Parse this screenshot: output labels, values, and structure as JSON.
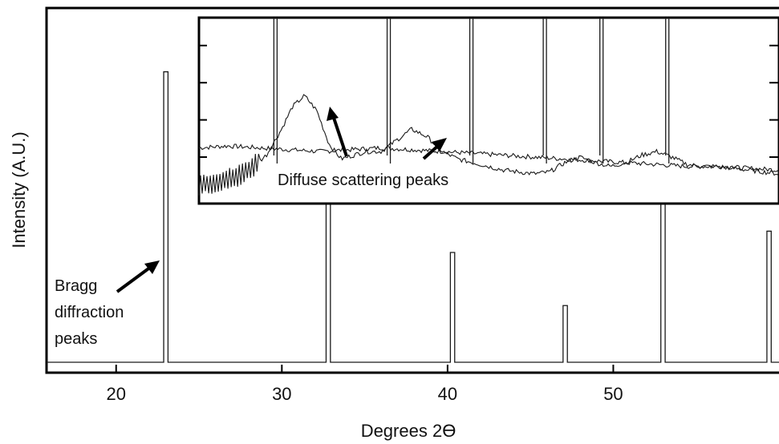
{
  "chart_data": {
    "type": "line",
    "title": "",
    "xlabel": "Degrees 2ϴ",
    "ylabel": "Intensity (A.U.)",
    "xlim": [
      15.8,
      60
    ],
    "ylim": [
      0,
      1.0
    ],
    "xticks": [
      20,
      30,
      40,
      50
    ],
    "grid": false,
    "legend": "none",
    "line_color": "#1a1a1a",
    "main_series": {
      "peaks": [
        {
          "x": 23.0,
          "y": 0.82
        },
        {
          "x": 32.8,
          "y": 0.62
        },
        {
          "x": 40.3,
          "y": 0.31
        },
        {
          "x": 47.1,
          "y": 0.16
        },
        {
          "x": 53.0,
          "y": 0.62
        },
        {
          "x": 59.4,
          "y": 0.37
        }
      ],
      "baseline": 0.0
    },
    "inset": {
      "xlim": [
        22.1,
        60
      ],
      "bragg_line_x": [
        27.1,
        34.5,
        39.9,
        44.7,
        48.4,
        52.7
      ],
      "series": [
        {
          "x": [
            22.1,
            24,
            26,
            28,
            30,
            32,
            34,
            36,
            38,
            40,
            42,
            44,
            46,
            48,
            50,
            52,
            54,
            56,
            58,
            60
          ],
          "y": [
            0.3,
            0.31,
            0.3,
            0.29,
            0.28,
            0.29,
            0.3,
            0.29,
            0.28,
            0.27,
            0.26,
            0.25,
            0.24,
            0.23,
            0.22,
            0.21,
            0.2,
            0.2,
            0.19,
            0.18
          ]
        },
        {
          "x": [
            22.1,
            23.5,
            24.5,
            25.5,
            26.5,
            27.5,
            28.2,
            29,
            29.8,
            30.6,
            31.4,
            32.2,
            33,
            34,
            35,
            36,
            37,
            38,
            39,
            40,
            41,
            42,
            43,
            44,
            45,
            46,
            47,
            48,
            49,
            50,
            51,
            52,
            53,
            54,
            55,
            56,
            57,
            58,
            59,
            60
          ],
          "y": [
            0.1,
            0.12,
            0.14,
            0.19,
            0.26,
            0.4,
            0.52,
            0.58,
            0.5,
            0.32,
            0.24,
            0.26,
            0.28,
            0.28,
            0.34,
            0.4,
            0.36,
            0.28,
            0.24,
            0.22,
            0.2,
            0.18,
            0.17,
            0.16,
            0.17,
            0.22,
            0.25,
            0.22,
            0.2,
            0.22,
            0.26,
            0.28,
            0.25,
            0.21,
            0.2,
            0.2,
            0.19,
            0.18,
            0.17,
            0.16
          ]
        }
      ]
    },
    "annotations": {
      "bragg_lines": [
        "Bragg",
        "diffraction",
        "peaks"
      ],
      "diffuse": "Diffuse scattering peaks"
    }
  }
}
